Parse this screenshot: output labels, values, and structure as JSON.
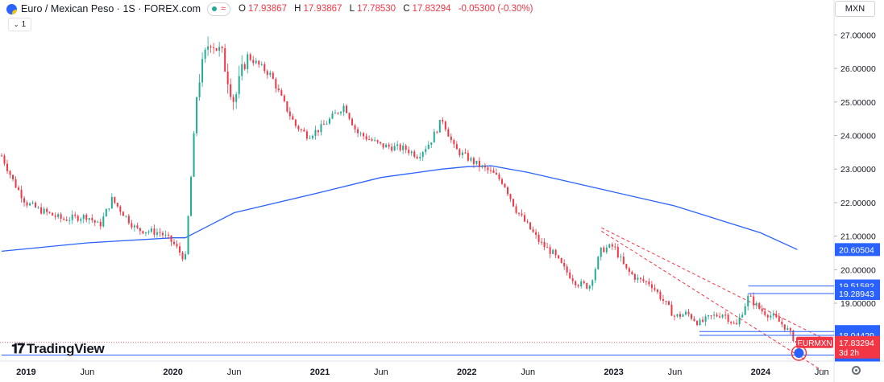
{
  "header": {
    "symbol": "Euro / Mexican Peso · 1S · FOREX.com",
    "open_label": "O",
    "open": "17.93867",
    "high_label": "H",
    "high": "17.93867",
    "low_label": "L",
    "low": "17.78530",
    "close_label": "C",
    "close": "17.83294",
    "change": "-0.05300 (-0.30%)",
    "pill_wave": "≈"
  },
  "timeframe_box": "1",
  "currency_label": "MXN",
  "brand": "TradingView",
  "colors": {
    "up": "#22ab94",
    "down": "#f23645",
    "ma": "#2962ff",
    "level": "#2962ff",
    "channel": "#f23645"
  },
  "chart_data": {
    "type": "candlestick",
    "instrument": "EURMXN",
    "interval": "1S",
    "ylim": [
      17.3,
      27.8
    ],
    "x_range": [
      "2018-11",
      "2024-07"
    ],
    "x_ticks": [
      {
        "label": "2019",
        "date": "2019-01"
      },
      {
        "label": "Jun",
        "date": "2019-06"
      },
      {
        "label": "2020",
        "date": "2020-01"
      },
      {
        "label": "Jun",
        "date": "2020-06"
      },
      {
        "label": "2021",
        "date": "2021-01"
      },
      {
        "label": "Jun",
        "date": "2021-06"
      },
      {
        "label": "2022",
        "date": "2022-01"
      },
      {
        "label": "Jun",
        "date": "2022-06"
      },
      {
        "label": "2023",
        "date": "2023-01"
      },
      {
        "label": "Jun",
        "date": "2023-06"
      },
      {
        "label": "2024",
        "date": "2024-01"
      },
      {
        "label": "Jun",
        "date": "2024-06"
      }
    ],
    "y_ticks": [
      "27.00000",
      "26.00000",
      "25.00000",
      "24.00000",
      "23.00000",
      "22.00000",
      "21.00000",
      "20.00000",
      "19.00000"
    ],
    "price_path": [
      [
        "2018-11",
        23.4
      ],
      [
        "2018-12",
        22.6
      ],
      [
        "2019-01",
        22.0
      ],
      [
        "2019-02",
        21.8
      ],
      [
        "2019-04",
        21.5
      ],
      [
        "2019-06",
        21.6
      ],
      [
        "2019-07",
        21.3
      ],
      [
        "2019-08",
        22.1
      ],
      [
        "2019-10",
        21.2
      ],
      [
        "2019-12",
        21.1
      ],
      [
        "2020-01",
        20.8
      ],
      [
        "2020-02",
        20.3
      ],
      [
        "2020-03",
        25.5
      ],
      [
        "2020-04",
        26.9
      ],
      [
        "2020-05",
        26.4
      ],
      [
        "2020-06",
        25.0
      ],
      [
        "2020-07",
        26.4
      ],
      [
        "2020-08",
        26.1
      ],
      [
        "2020-09",
        25.8
      ],
      [
        "2020-10",
        25.0
      ],
      [
        "2020-11",
        24.3
      ],
      [
        "2020-12",
        24.0
      ],
      [
        "2021-01",
        24.2
      ],
      [
        "2021-03",
        24.9
      ],
      [
        "2021-04",
        24.1
      ],
      [
        "2021-06",
        23.7
      ],
      [
        "2021-08",
        23.6
      ],
      [
        "2021-09",
        23.4
      ],
      [
        "2021-10",
        23.8
      ],
      [
        "2021-11",
        24.5
      ],
      [
        "2021-12",
        23.6
      ],
      [
        "2022-02",
        23.1
      ],
      [
        "2022-03",
        22.9
      ],
      [
        "2022-04",
        22.6
      ],
      [
        "2022-05",
        21.8
      ],
      [
        "2022-06",
        21.3
      ],
      [
        "2022-07",
        20.8
      ],
      [
        "2022-08",
        20.5
      ],
      [
        "2022-09",
        20.0
      ],
      [
        "2022-10",
        19.6
      ],
      [
        "2022-11",
        19.5
      ],
      [
        "2022-12",
        20.6
      ],
      [
        "2023-01",
        20.7
      ],
      [
        "2023-02",
        20.0
      ],
      [
        "2023-03",
        19.7
      ],
      [
        "2023-04",
        19.6
      ],
      [
        "2023-05",
        19.1
      ],
      [
        "2023-06",
        18.6
      ],
      [
        "2023-07",
        18.7
      ],
      [
        "2023-08",
        18.4
      ],
      [
        "2023-09",
        18.6
      ],
      [
        "2023-10",
        18.7
      ],
      [
        "2023-11",
        18.3
      ],
      [
        "2023-12",
        19.2
      ],
      [
        "2024-01",
        18.8
      ],
      [
        "2024-02",
        18.6
      ],
      [
        "2024-03",
        18.3
      ],
      [
        "2024-04",
        17.8
      ]
    ],
    "moving_average": [
      [
        "2018-11",
        20.55
      ],
      [
        "2019-06",
        20.8
      ],
      [
        "2020-01",
        20.95
      ],
      [
        "2020-02",
        20.95
      ],
      [
        "2020-06",
        21.7
      ],
      [
        "2021-01",
        22.3
      ],
      [
        "2021-06",
        22.75
      ],
      [
        "2021-11",
        23.0
      ],
      [
        "2022-01",
        23.07
      ],
      [
        "2022-03",
        23.1
      ],
      [
        "2022-06",
        22.9
      ],
      [
        "2022-12",
        22.4
      ],
      [
        "2023-06",
        21.9
      ],
      [
        "2024-01",
        21.1
      ],
      [
        "2024-04",
        20.6
      ]
    ],
    "channel_upper": [
      [
        "2022-12",
        21.25
      ],
      [
        "2024-06",
        17.97
      ]
    ],
    "channel_lower": [
      [
        "2022-12",
        21.15
      ],
      [
        "2024-06",
        17.0
      ]
    ],
    "levels": [
      {
        "value": 19.51582,
        "label": "19.51582",
        "from": "2023-12"
      },
      {
        "value": 19.28943,
        "label": "19.28943",
        "from": "2023-12"
      },
      {
        "value": 18.15749,
        "label": "18.15749",
        "from": "2023-08"
      },
      {
        "value": 18.04429,
        "label": "18.04429",
        "from": "2023-08"
      },
      {
        "value": 17.45568,
        "label": "17.45568",
        "from": "2018-11"
      }
    ],
    "ma_value_label": "20.60504",
    "last_price": {
      "value": 17.83294,
      "label": "17.83294",
      "tag": "EURMXN",
      "countdown": "3d 2h"
    }
  }
}
